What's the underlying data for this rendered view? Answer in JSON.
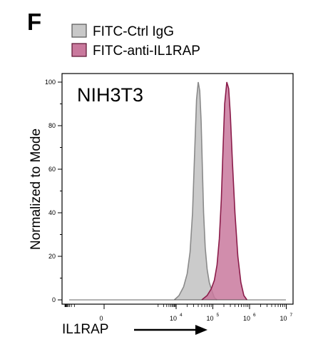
{
  "panel_label": "F",
  "chart_data": {
    "type": "area",
    "inset_title": "NIH3T3",
    "xlabel": "IL1RAP",
    "ylabel": "Normalized to Mode",
    "x_scale": "biexponential",
    "ylim": [
      0,
      100
    ],
    "y_ticks": [
      0,
      20,
      40,
      60,
      80,
      100
    ],
    "y_tick_labels": [
      "0",
      "20",
      "40",
      "60",
      "80",
      "100"
    ],
    "x_ticks": [
      {
        "value": 0,
        "base": "0",
        "exp": ""
      },
      {
        "value": 10000,
        "base": "10",
        "exp": "4"
      },
      {
        "value": 100000,
        "base": "10",
        "exp": "5"
      },
      {
        "value": 1000000,
        "base": "10",
        "exp": "6"
      },
      {
        "value": 10000000,
        "base": "10",
        "exp": "7"
      }
    ],
    "grid": false,
    "legend_position": "top",
    "series": [
      {
        "name": "FITC-Ctrl IgG",
        "fill": "#c8c8c8",
        "stroke": "#8a8a8a",
        "x": [
          8000,
          12000,
          16000,
          20000,
          24000,
          28000,
          32000,
          36000,
          40000,
          44000,
          48000,
          52000,
          56000,
          62000,
          70000,
          80000,
          95000,
          110000,
          130000
        ],
        "y": [
          0,
          2,
          6,
          12,
          22,
          40,
          68,
          92,
          100,
          96,
          82,
          60,
          40,
          24,
          14,
          8,
          4,
          1,
          0
        ]
      },
      {
        "name": "FITC-anti-IL1RAP",
        "fill": "#c9799d",
        "stroke": "#8b1c4a",
        "x": [
          50000,
          70000,
          90000,
          110000,
          130000,
          150000,
          170000,
          190000,
          210000,
          240000,
          270000,
          300000,
          340000,
          400000,
          480000,
          580000,
          700000,
          850000
        ],
        "y": [
          0,
          2,
          5,
          9,
          16,
          28,
          46,
          70,
          90,
          100,
          97,
          85,
          64,
          40,
          20,
          8,
          2,
          0
        ]
      }
    ]
  }
}
